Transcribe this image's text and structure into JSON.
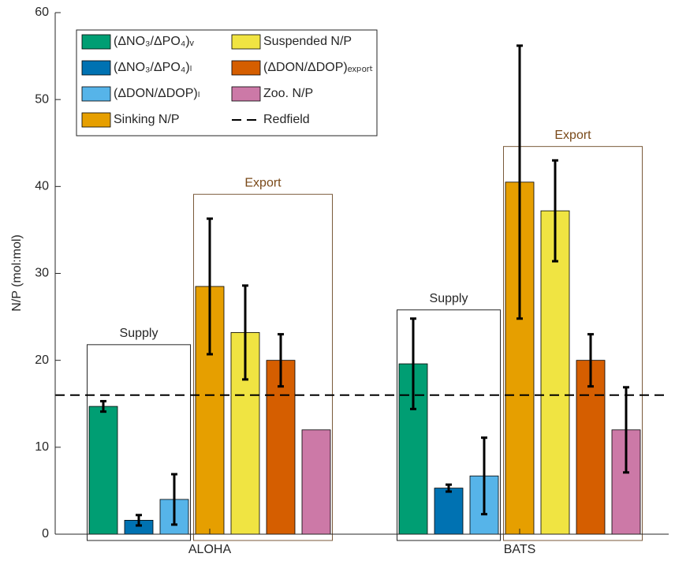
{
  "chart_data": {
    "type": "bar",
    "ylabel": "N/P (mol:mol)",
    "categories": [
      "ALOHA",
      "BATS"
    ],
    "ylim": [
      0,
      60
    ],
    "yticks": [
      0,
      10,
      20,
      30,
      40,
      50,
      60
    ],
    "series": [
      {
        "name": "(ΔNO₃/ΔPO₄)ᵥ",
        "color": "#009e73",
        "values": [
          14.7,
          19.6
        ],
        "errors": [
          0.6,
          5.2
        ]
      },
      {
        "name": "(ΔNO₃/ΔPO₄)ₗ",
        "color": "#0072b2",
        "values": [
          1.6,
          5.3
        ],
        "errors": [
          0.6,
          0.4
        ]
      },
      {
        "name": "(ΔDON/ΔDOP)ₗ",
        "color": "#56b4e9",
        "values": [
          4.0,
          6.7
        ],
        "errors": [
          2.9,
          4.4
        ]
      },
      {
        "name": "Sinking N/P",
        "color": "#e69f00",
        "values": [
          28.5,
          40.5
        ],
        "errors": [
          7.8,
          15.7
        ]
      },
      {
        "name": "Suspended N/P",
        "color": "#f0e442",
        "values": [
          23.2,
          37.2
        ],
        "errors": [
          5.4,
          5.8
        ]
      },
      {
        "name": "(ΔDON/ΔDOP)ₑₓₚₒᵣₜ",
        "color": "#d55e00",
        "values": [
          20.0,
          20.0
        ],
        "errors": [
          3.0,
          3.0
        ]
      },
      {
        "name": "Zoo. N/P",
        "color": "#cc79a7",
        "values": [
          12.0,
          12.0
        ],
        "errors": [
          null,
          4.9
        ]
      }
    ],
    "hline": {
      "name": "Redfield",
      "value": 16,
      "color": "#000000"
    },
    "annotations": [
      {
        "text": "Supply",
        "category": 0,
        "series": [
          0,
          2
        ],
        "top": 21.8
      },
      {
        "text": "Export",
        "category": 0,
        "series": [
          3,
          6
        ],
        "top": 39.1
      },
      {
        "text": "Supply",
        "category": 1,
        "series": [
          0,
          2
        ],
        "top": 25.8
      },
      {
        "text": "Export",
        "category": 1,
        "series": [
          3,
          6
        ],
        "top": 44.6
      }
    ]
  }
}
